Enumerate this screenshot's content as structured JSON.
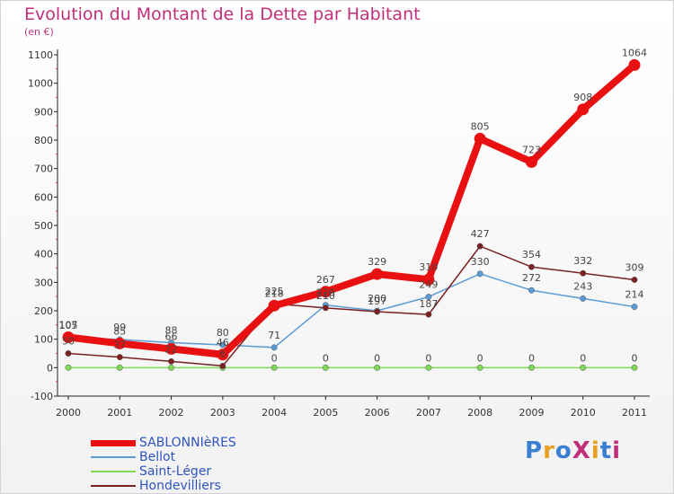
{
  "title": "Evolution du Montant de la Dette par Habitant",
  "unit": "(en €)",
  "logo": {
    "text": "ProXiti",
    "colors": [
      "#3a7fd0",
      "#e8a020",
      "#3a7fd0",
      "#c0307a",
      "#e8a020",
      "#3a7fd0",
      "#c0307a"
    ]
  },
  "chart_data": {
    "type": "line",
    "x": [
      "2000",
      "2001",
      "2002",
      "2003",
      "2004",
      "2005",
      "2006",
      "2007",
      "2008",
      "2009",
      "2010",
      "2011"
    ],
    "ylim": [
      -100,
      1100
    ],
    "yticks": [
      "-100",
      "0",
      "100",
      "200",
      "300",
      "400",
      "500",
      "600",
      "700",
      "800",
      "900",
      "1000",
      "1100"
    ],
    "grid": false,
    "legend_position": "bottom-left",
    "series": [
      {
        "name": "SABLONNIèRES",
        "color": "#e81010",
        "values": [
          107,
          85,
          66,
          46,
          218,
          267,
          329,
          310,
          805,
          723,
          908,
          1064
        ],
        "labels": [
          "107",
          "85",
          "66",
          "46",
          "218",
          "267",
          "329",
          "310",
          "805",
          "723",
          "908",
          "1064"
        ]
      },
      {
        "name": "Bellot",
        "color": "#5b9bd5",
        "values": [
          105,
          99,
          88,
          80,
          71,
          220,
          200,
          249,
          330,
          272,
          243,
          214
        ],
        "labels": [
          "105",
          "99",
          "88",
          "80",
          "71",
          "220",
          "200",
          "249",
          "330",
          "272",
          "243",
          "214"
        ]
      },
      {
        "name": "Saint-Léger",
        "color": "#7ed957",
        "values": [
          0,
          0,
          0,
          0,
          0,
          0,
          0,
          0,
          0,
          0,
          0,
          0
        ],
        "labels": [
          "",
          "",
          "",
          "",
          "0",
          "0",
          "0",
          "0",
          "0",
          "0",
          "0",
          "0"
        ]
      },
      {
        "name": "Hondevilliers",
        "color": "#7a2020",
        "values": [
          50,
          37,
          22,
          6,
          225,
          210,
          197,
          187,
          427,
          354,
          332,
          309
        ],
        "labels": [
          "50",
          "37",
          "22",
          "6",
          "225",
          "210",
          "197",
          "187",
          "427",
          "354",
          "332",
          "309"
        ]
      }
    ]
  }
}
